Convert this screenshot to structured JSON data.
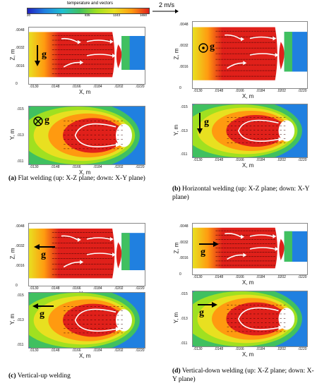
{
  "legend": {
    "title": "temperature and vectors",
    "ticks": [
      "20",
      "426",
      "835",
      "1243",
      "1650"
    ],
    "scale_label": "2 m/s"
  },
  "axes": {
    "x_label": "X, m",
    "z_label": "Z, m",
    "y_label": "Y, m",
    "x_ticks": [
      ".0130",
      ".0148",
      ".0166",
      ".0184",
      ".0202",
      ".0220"
    ],
    "z_ticks": [
      ".0048",
      ".0032",
      ".0016",
      "0"
    ],
    "y_ticks": [
      ".015",
      ".013",
      ".011"
    ]
  },
  "gravity_symbol": "g",
  "panels": [
    {
      "id": "a",
      "caption_letter": "(a)",
      "caption_text": " Flat welding (up: X-Z plane; down: X-Y plane)",
      "gravity_xz": "down",
      "gravity_xy": "into-page"
    },
    {
      "id": "b",
      "caption_letter": "(b)",
      "caption_text": " Horizontal welding (up: X-Z plane; down: X-Y plane)",
      "gravity_xz": "out-of-page",
      "gravity_xy": "down"
    },
    {
      "id": "c",
      "caption_letter": "(c)",
      "caption_text": " Vertical-up welding",
      "gravity_xz": "left",
      "gravity_xy": "left"
    },
    {
      "id": "d",
      "caption_letter": "(d)",
      "caption_text": " Vertical-down welding (up: X-Z plane; down: X-Y plane)",
      "gravity_xz": "right",
      "gravity_xy": "right"
    }
  ],
  "colors": {
    "hot": "#e0201a",
    "warm": "#ff9a10",
    "mid": "#e8e020",
    "cool": "#40c060",
    "cold": "#2080e0",
    "arrow": "#ffffff"
  }
}
